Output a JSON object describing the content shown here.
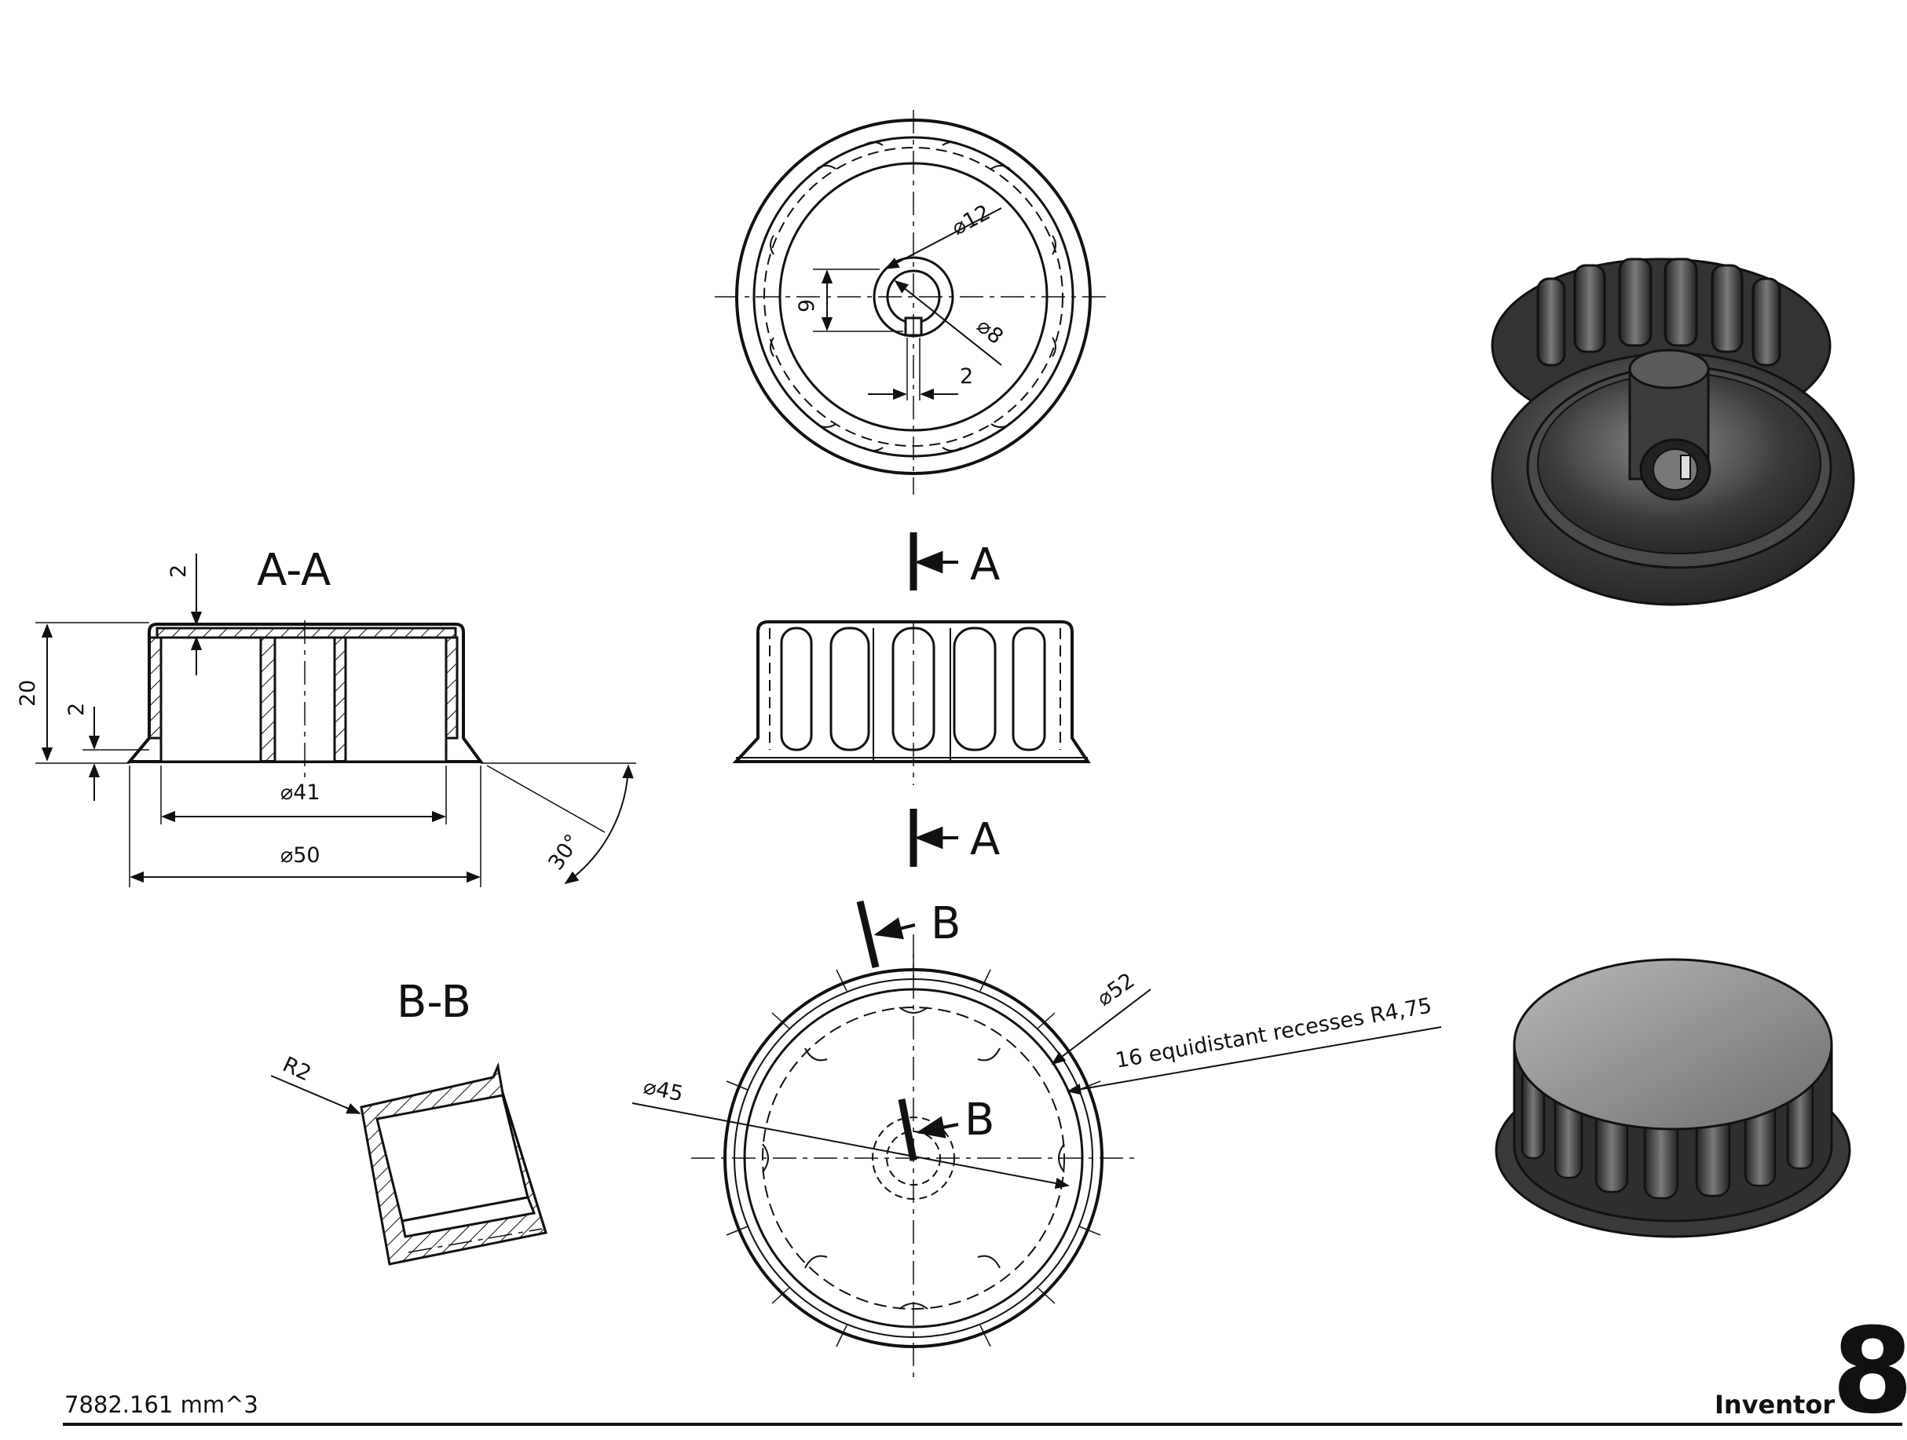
{
  "sheet": {
    "volume_label": "7882.161 mm^3",
    "brand_label": "Inventor",
    "sheet_number": "8"
  },
  "section_labels": {
    "aa_title": "A-A",
    "bb_title": "B-B",
    "cut_a_top": "A",
    "cut_a_bottom": "A",
    "cut_b_left": "B",
    "cut_b_right": "B"
  },
  "dimensions": {
    "top_view": {
      "d12": "⌀12",
      "d8": "⌀8",
      "width9": "9",
      "key2": "2"
    },
    "section_aa": {
      "height20": "20",
      "wall2": "2",
      "flange2": "2",
      "d41": "⌀41",
      "d50": "⌀50",
      "angle30": "30°"
    },
    "section_bb": {
      "r2": "R2"
    },
    "bottom_view": {
      "d52": "⌀52",
      "d45": "⌀45",
      "recesses_note": "16 equidistant recesses R4,75"
    }
  },
  "colors": {
    "line": "#111111",
    "render_dark": "#2a2a2a",
    "render_light": "#9a9a9a"
  }
}
